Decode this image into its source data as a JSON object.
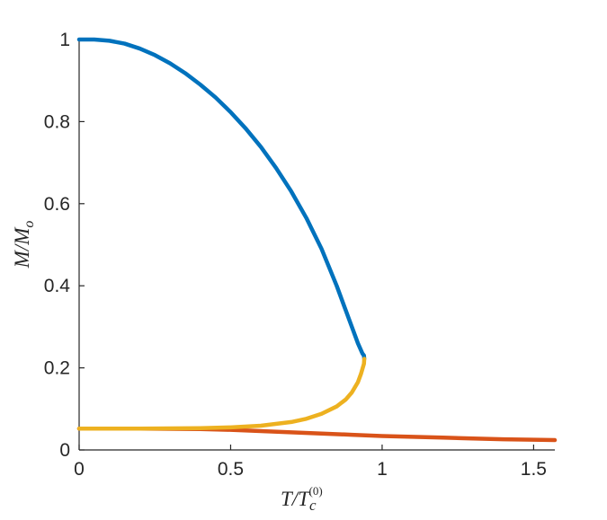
{
  "chart_data": {
    "type": "line",
    "title": "",
    "xlabel": "T/Tc(0)",
    "ylabel": "M/Mo",
    "xlim": [
      0,
      1.57
    ],
    "ylim": [
      0,
      1
    ],
    "xticks": [
      0,
      0.5,
      1,
      1.5
    ],
    "xtick_labels": [
      "0",
      "0.5",
      "1",
      "1.5"
    ],
    "yticks": [
      0,
      0.2,
      0.4,
      0.6,
      0.8,
      1
    ],
    "ytick_labels": [
      "0",
      "0.2",
      "0.4",
      "0.6",
      "0.8",
      "1"
    ],
    "grid": false,
    "legend": "none",
    "series": [
      {
        "color": "#0072BD",
        "x": [
          0,
          0.05,
          0.1,
          0.15,
          0.2,
          0.25,
          0.3,
          0.35,
          0.4,
          0.45,
          0.5,
          0.55,
          0.6,
          0.65,
          0.7,
          0.75,
          0.8,
          0.85,
          0.88,
          0.9,
          0.92,
          0.935,
          0.94,
          0.941
        ],
        "y": [
          1.0,
          1.0,
          0.997,
          0.99,
          0.978,
          0.962,
          0.942,
          0.918,
          0.89,
          0.859,
          0.823,
          0.783,
          0.738,
          0.687,
          0.63,
          0.565,
          0.49,
          0.4,
          0.34,
          0.3,
          0.26,
          0.235,
          0.23,
          0.222
        ]
      },
      {
        "color": "#D95319",
        "x": [
          0,
          0.2,
          0.4,
          0.5,
          0.6,
          0.7,
          0.8,
          0.9,
          1.0,
          1.1,
          1.2,
          1.3,
          1.4,
          1.5,
          1.57
        ],
        "y": [
          0.052,
          0.052,
          0.051,
          0.049,
          0.046,
          0.043,
          0.04,
          0.037,
          0.034,
          0.032,
          0.03,
          0.028,
          0.026,
          0.025,
          0.024
        ]
      },
      {
        "color": "#EDB120",
        "x": [
          0,
          0.2,
          0.4,
          0.5,
          0.6,
          0.7,
          0.75,
          0.8,
          0.85,
          0.88,
          0.9,
          0.92,
          0.93,
          0.94,
          0.941
        ],
        "y": [
          0.052,
          0.052,
          0.053,
          0.055,
          0.059,
          0.068,
          0.076,
          0.088,
          0.106,
          0.123,
          0.14,
          0.165,
          0.185,
          0.21,
          0.222
        ]
      }
    ]
  }
}
